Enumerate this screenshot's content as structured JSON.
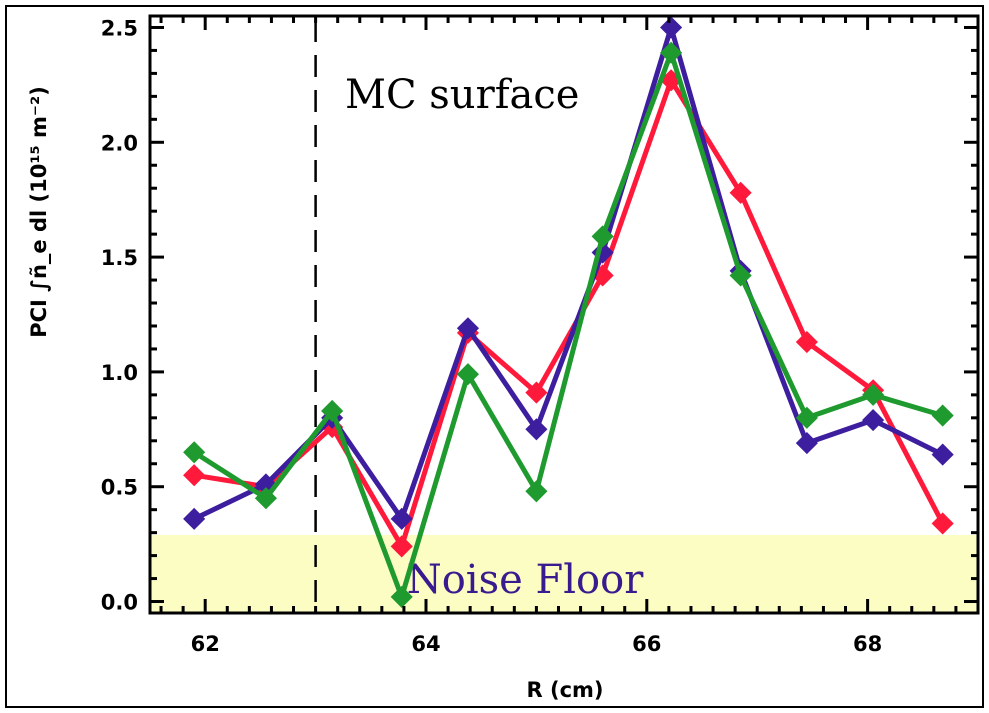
{
  "chart_data": {
    "type": "line",
    "xlabel": "R (cm)",
    "ylabel": "PCI ∫ñ_e dl (10¹⁵ m⁻²)",
    "xlim": [
      61.5,
      69.0
    ],
    "ylim": [
      -0.05,
      2.55
    ],
    "x_ticks": [
      62,
      64,
      66,
      68
    ],
    "x_tick_labels": [
      "62",
      "64",
      "66",
      "68"
    ],
    "y_ticks": [
      0.0,
      0.5,
      1.0,
      1.5,
      2.0,
      2.5
    ],
    "y_tick_labels": [
      "0.0",
      "0.5",
      "1.0",
      "1.5",
      "2.0",
      "2.5"
    ],
    "x": [
      61.9,
      62.55,
      63.15,
      63.78,
      64.38,
      65.0,
      65.6,
      66.22,
      66.85,
      67.45,
      68.05,
      68.68
    ],
    "series": [
      {
        "color": "#ff1a3c",
        "values": [
          0.55,
          0.5,
          0.76,
          0.24,
          1.17,
          0.91,
          1.42,
          2.27,
          1.78,
          1.13,
          0.92,
          0.34
        ]
      },
      {
        "color": "#3d1e9e",
        "values": [
          0.36,
          0.51,
          0.8,
          0.36,
          1.19,
          0.75,
          1.52,
          2.5,
          1.44,
          0.69,
          0.79,
          0.64
        ]
      },
      {
        "color": "#1e9a2e",
        "values": [
          0.65,
          0.45,
          0.83,
          0.02,
          0.99,
          0.48,
          1.59,
          2.39,
          1.42,
          0.8,
          0.9,
          0.81
        ]
      }
    ],
    "reference_line": {
      "x": 63.0,
      "style": "dashed",
      "color": "#000000"
    },
    "noise_band": {
      "y_min": -0.05,
      "y_max": 0.29,
      "color": "#fbfdc2"
    },
    "annotations": {
      "mc_surface": {
        "text": "MC surface",
        "color": "#000000"
      },
      "noise_floor": {
        "text": "Noise Floor",
        "color": "#3a1a8f"
      }
    },
    "legend": "none",
    "grid": false
  }
}
